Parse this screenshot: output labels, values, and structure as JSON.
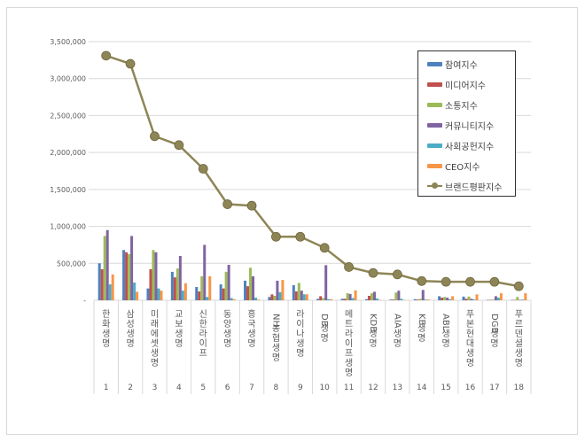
{
  "chart_data": {
    "type": "bar",
    "title": "",
    "xlabel": "",
    "ylabel": "",
    "ylim": [
      0,
      3500000
    ],
    "yticks": [
      "-",
      "500,000",
      "1,000,000",
      "1,500,000",
      "2,000,000",
      "2,500,000",
      "3,000,000",
      "3,500,000"
    ],
    "grid": true,
    "legend_position": "upper right",
    "categories": [
      "한화생명",
      "삼성생명",
      "미래에셋생명",
      "교보생명",
      "신한라이프",
      "동양생명",
      "흥국생명",
      "NH농협생명",
      "라이나생명",
      "DB생명",
      "메트라이프생명",
      "KDB생명",
      "AIA생명",
      "KB생명",
      "ABL생명",
      "푸본현대생명",
      "DGB생명",
      "푸르덴셜생명"
    ],
    "ranks": [
      "1",
      "2",
      "3",
      "4",
      "5",
      "6",
      "7",
      "8",
      "9",
      "10",
      "11",
      "12",
      "13",
      "14",
      "15",
      "16",
      "17",
      "18"
    ],
    "series": [
      {
        "name": "참여지수",
        "type": "bar",
        "color": "#4F81BD",
        "values": [
          500000,
          680000,
          160000,
          385000,
          180000,
          215000,
          265000,
          45000,
          205000,
          20000,
          20000,
          15000,
          10000,
          15000,
          55000,
          50000,
          5000,
          5000
        ]
      },
      {
        "name": "미디어지수",
        "type": "bar",
        "color": "#C0504D",
        "values": [
          420000,
          650000,
          420000,
          310000,
          120000,
          160000,
          190000,
          80000,
          120000,
          55000,
          20000,
          60000,
          10000,
          10000,
          35000,
          20000,
          5000,
          5000
        ]
      },
      {
        "name": "소통지수",
        "type": "bar",
        "color": "#9BBB59",
        "values": [
          870000,
          625000,
          680000,
          430000,
          325000,
          385000,
          440000,
          60000,
          235000,
          30000,
          95000,
          95000,
          105000,
          20000,
          45000,
          50000,
          10000,
          45000
        ]
      },
      {
        "name": "커뮤니티지수",
        "type": "bar",
        "color": "#8064A2",
        "values": [
          950000,
          870000,
          650000,
          600000,
          750000,
          480000,
          325000,
          265000,
          130000,
          475000,
          85000,
          115000,
          130000,
          140000,
          35000,
          20000,
          55000,
          5000
        ]
      },
      {
        "name": "사회공헌지수",
        "type": "bar",
        "color": "#4BACC6",
        "values": [
          215000,
          240000,
          160000,
          130000,
          45000,
          30000,
          35000,
          110000,
          80000,
          15000,
          30000,
          25000,
          20000,
          10000,
          15000,
          10000,
          35000,
          10000
        ]
      },
      {
        "name": "CEO지수",
        "type": "bar",
        "color": "#F79646",
        "values": [
          350000,
          115000,
          130000,
          230000,
          325000,
          15000,
          10000,
          275000,
          80000,
          15000,
          135000,
          5000,
          5000,
          10000,
          55000,
          80000,
          95000,
          95000
        ]
      },
      {
        "name": "브랜드평판지수",
        "type": "line",
        "color": "#8E8556",
        "values": [
          3310000,
          3200000,
          2220000,
          2100000,
          1780000,
          1300000,
          1280000,
          860000,
          860000,
          710000,
          450000,
          370000,
          350000,
          260000,
          250000,
          250000,
          250000,
          190000
        ]
      }
    ]
  },
  "legend": {
    "items": [
      {
        "label": "참여지수",
        "color": "#4F81BD",
        "kind": "bar"
      },
      {
        "label": "미디어지수",
        "color": "#C0504D",
        "kind": "bar"
      },
      {
        "label": "소통지수",
        "color": "#9BBB59",
        "kind": "bar"
      },
      {
        "label": "커뮤니티지수",
        "color": "#8064A2",
        "kind": "bar"
      },
      {
        "label": "사회공헌지수",
        "color": "#4BACC6",
        "kind": "bar"
      },
      {
        "label": "CEO지수",
        "color": "#F79646",
        "kind": "bar"
      },
      {
        "label": "브랜드평판지수",
        "color": "#8E8556",
        "kind": "line"
      }
    ]
  }
}
